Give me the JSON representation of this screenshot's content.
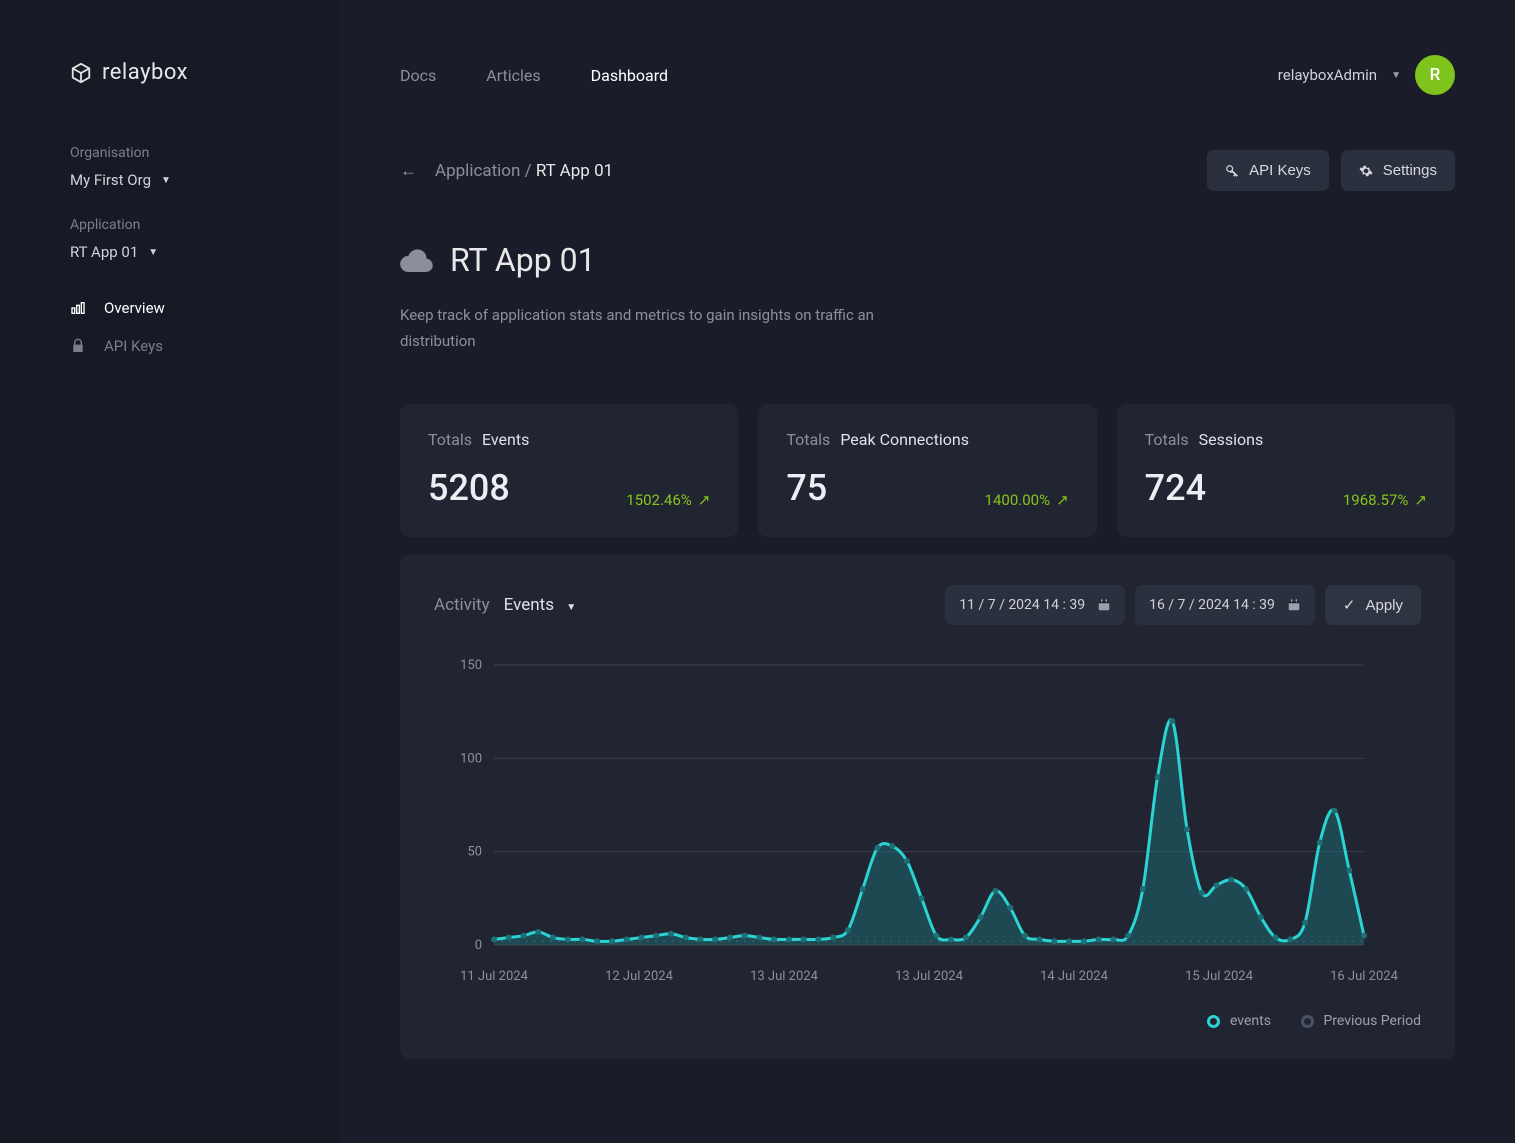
{
  "brand": "relaybox",
  "sidebar": {
    "org_label": "Organisation",
    "org_value": "My First Org",
    "app_label": "Application",
    "app_value": "RT App 01",
    "nav": [
      {
        "icon": "chart",
        "label": "Overview",
        "active": true
      },
      {
        "icon": "lock",
        "label": "API Keys",
        "active": false
      }
    ]
  },
  "topnav": [
    {
      "label": "Docs",
      "active": false
    },
    {
      "label": "Articles",
      "active": false
    },
    {
      "label": "Dashboard",
      "active": true
    }
  ],
  "user": {
    "name": "relayboxAdmin",
    "initial": "R"
  },
  "breadcrumb": {
    "parent": "Application",
    "sep": "/",
    "current": "RT App 01"
  },
  "actions": {
    "api_keys": "API Keys",
    "settings": "Settings"
  },
  "page": {
    "title": "RT App 01",
    "desc": "Keep track of application stats and metrics to gain insights on traffic an distribution"
  },
  "cards": [
    {
      "label_muted": "Totals",
      "label": "Events",
      "value": "5208",
      "growth": "1502.46%"
    },
    {
      "label_muted": "Totals",
      "label": "Peak Connections",
      "value": "75",
      "growth": "1400.00%"
    },
    {
      "label_muted": "Totals",
      "label": "Sessions",
      "value": "724",
      "growth": "1968.57%"
    }
  ],
  "activity": {
    "label_muted": "Activity",
    "label": "Events",
    "date_from": "11 / 7 / 2024   14 : 39",
    "date_to": "16 / 7 / 2024   14 : 39",
    "apply": "Apply"
  },
  "chart": {
    "type": "area",
    "y_label_color": "#8b8f9c",
    "x_label_color": "#8b8f9c",
    "grid_color": "#3a3f50",
    "background": "transparent",
    "line_color": "#2ad4d4",
    "line_width": 3,
    "fill_color": "#1e6e74",
    "fill_opacity": 0.5,
    "marker_color": "#1e6e74",
    "marker_size": 3,
    "prev_line_color": "#4a5265",
    "ylim": [
      0,
      150
    ],
    "ytick_step": 50,
    "yticks": [
      "0",
      "50",
      "100",
      "150"
    ],
    "xticks": [
      "11 Jul 2024",
      "12 Jul 2024",
      "13 Jul 2024",
      "13 Jul 2024",
      "14 Jul 2024",
      "15 Jul 2024",
      "16 Jul 2024"
    ],
    "series_events": [
      3,
      4,
      5,
      7,
      4,
      3,
      3,
      2,
      2,
      3,
      4,
      5,
      6,
      4,
      3,
      3,
      4,
      5,
      4,
      3,
      3,
      3,
      3,
      4,
      8,
      30,
      52,
      53,
      45,
      25,
      5,
      3,
      4,
      15,
      29,
      20,
      5,
      3,
      2,
      2,
      2,
      3,
      3,
      5,
      30,
      90,
      120,
      62,
      28,
      32,
      35,
      30,
      15,
      4,
      3,
      12,
      55,
      72,
      40,
      5
    ],
    "series_prev": [
      2,
      2,
      2,
      2,
      2,
      2,
      2,
      2,
      2,
      2,
      2,
      2,
      2,
      2,
      2,
      2,
      2,
      2,
      2,
      2,
      2,
      2,
      2,
      2,
      2,
      2,
      2,
      2,
      2,
      2,
      2,
      2,
      2,
      2,
      2,
      2,
      2,
      2,
      2,
      2,
      2,
      2,
      2,
      2,
      2,
      2,
      2,
      2,
      2,
      2,
      2,
      2,
      2,
      2,
      2,
      2,
      2,
      2,
      2,
      2
    ],
    "legend": [
      {
        "label": "events",
        "color": "#2ad4d4"
      },
      {
        "label": "Previous Period",
        "color": "#4a5265"
      }
    ]
  }
}
